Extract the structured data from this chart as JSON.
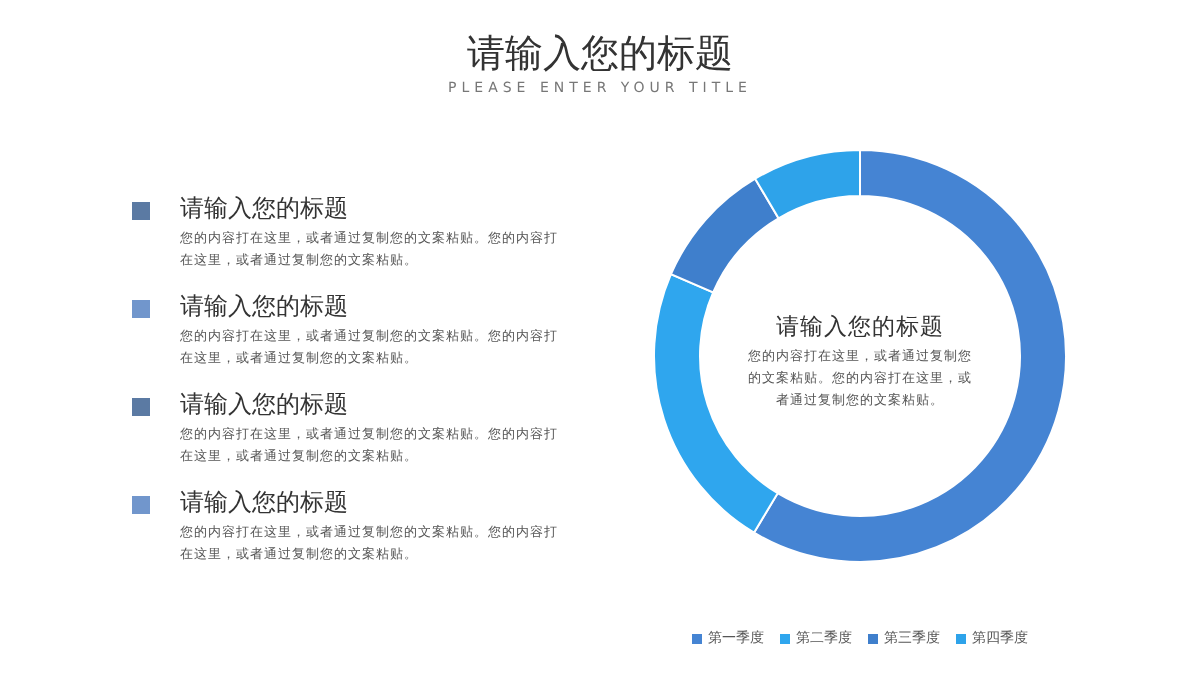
{
  "chart_data": {
    "type": "donut",
    "title": "请输入您的标题",
    "subtitle": "PLEASE ENTER YOUR TITLE",
    "categories": [
      "第一季度",
      "第二季度",
      "第三季度",
      "第四季度"
    ],
    "values": [
      58.6,
      22.9,
      10,
      8.5
    ],
    "colors": [
      "#4584d3",
      "#2fa6ee",
      "#3f7fcc",
      "#2ea3ea"
    ],
    "legend": "bottom",
    "annotations": [
      "请输入您的标题",
      "您的内容打在这里，或者通过复制您的文案粘贴。您的内容打在这里，或者通过复制您的文案粘贴。",
      "请输入您的标题",
      "您的内容打在这里，或者通过复制您的文案粘贴。您的内容打在这里，或者通过复制您的文案粘贴。",
      "请输入您的标题",
      "您的内容打在这里，或者通过复制您的文案粘贴。您的内容打在这里，或者通过复制您的文案粘贴。",
      "请输入您的标题",
      "您的内容打在这里，或者通过复制您的文案粘贴。您的内容打在这里，或者通过复制您的文案粘贴。",
      "请输入您的标题",
      "您的内容打在这里，或者通过复制您的文案粘贴。您的内容打在这里，或者通过复制您的文案粘贴。"
    ]
  }
}
